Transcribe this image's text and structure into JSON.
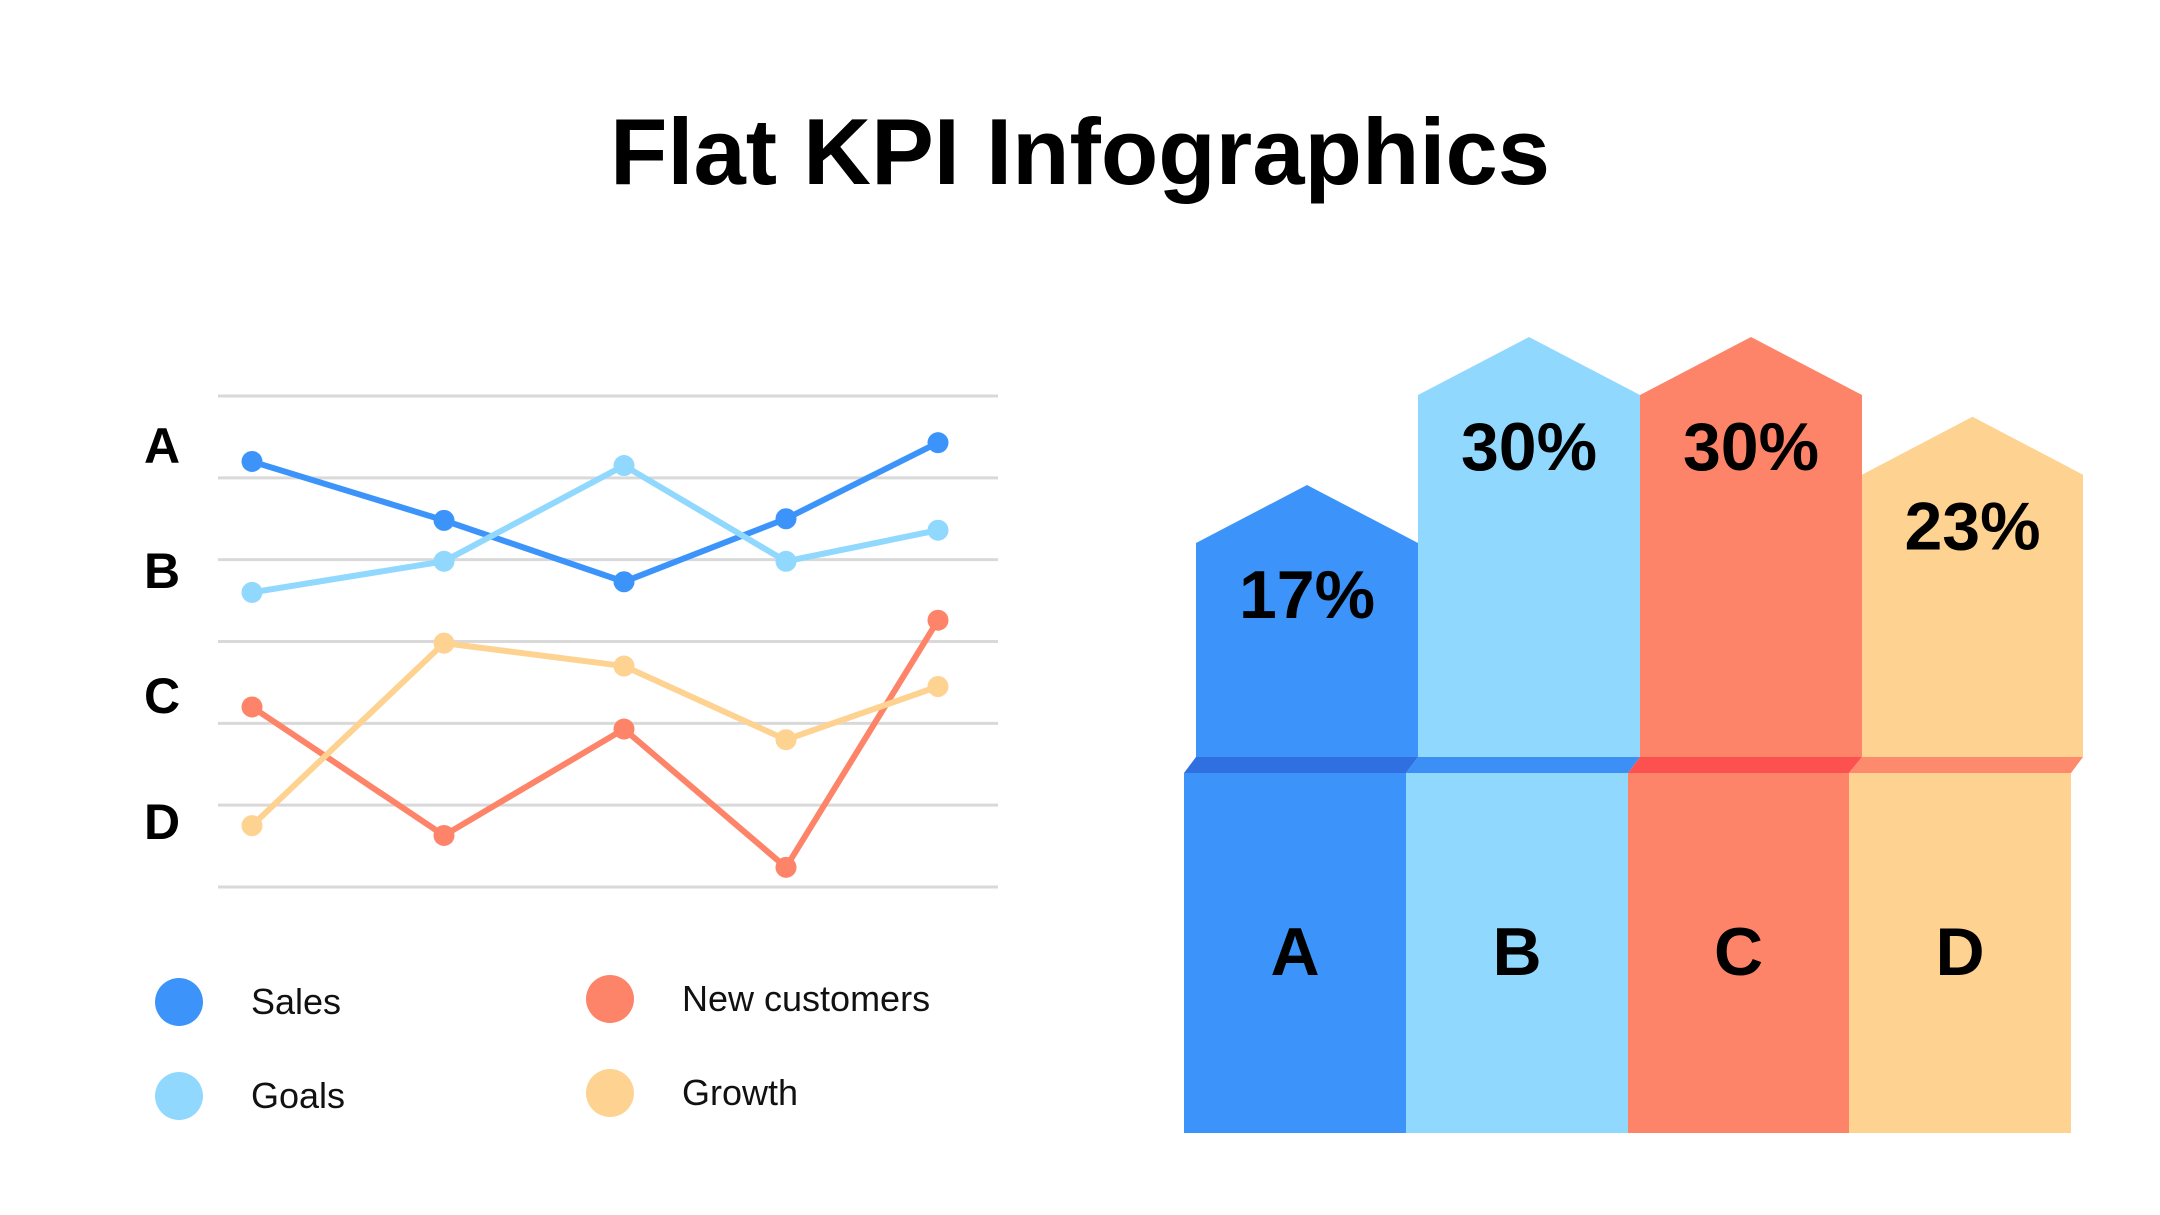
{
  "title": "Flat KPI Infographics",
  "colors": {
    "sales": "#3c94fb",
    "goals": "#90d8fe",
    "new_customers": "#fe8469",
    "growth": "#fed290",
    "grid": "#d9d9d9",
    "band_a": "#2f6fe0",
    "band_b": "#3b8ff5",
    "band_c": "#fd5150",
    "band_d": "#fe8a6d"
  },
  "chart_data": [
    {
      "type": "line",
      "title": "",
      "y_categories": [
        "A",
        "B",
        "C",
        "D"
      ],
      "x": [
        1,
        2,
        3,
        4,
        5
      ],
      "ylim": [
        0,
        6
      ],
      "grid": true,
      "legend_position": "bottom",
      "series": [
        {
          "name": "Sales",
          "color_key": "sales",
          "values": [
            5.2,
            4.48,
            3.73,
            4.5,
            5.43
          ]
        },
        {
          "name": "Goals",
          "color_key": "goals",
          "values": [
            3.6,
            3.98,
            5.15,
            3.98,
            4.36
          ]
        },
        {
          "name": "New customers",
          "color_key": "new_customers",
          "values": [
            2.2,
            0.63,
            1.93,
            0.24,
            3.26
          ]
        },
        {
          "name": "Growth",
          "color_key": "growth",
          "values": [
            0.75,
            2.98,
            2.7,
            1.8,
            2.45
          ]
        }
      ]
    },
    {
      "type": "bar",
      "title": "",
      "categories": [
        "A",
        "B",
        "C",
        "D"
      ],
      "values": [
        17,
        30,
        30,
        23
      ],
      "value_labels": [
        "17%",
        "30%",
        "30%",
        "23%"
      ],
      "unit": "%",
      "colors": [
        "sales",
        "goals",
        "new_customers",
        "growth"
      ]
    }
  ]
}
